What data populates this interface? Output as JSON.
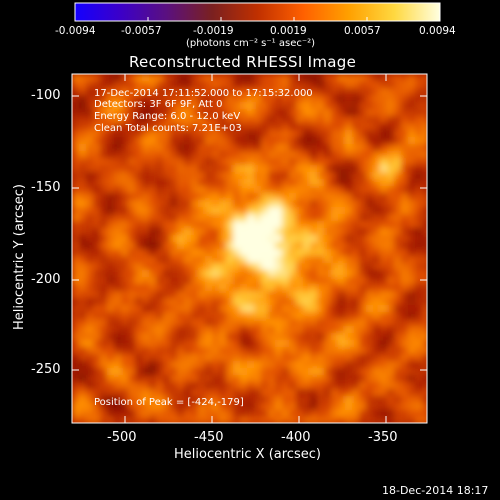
{
  "colorbar": {
    "ticks": [
      "-0.0094",
      "-0.0057",
      "-0.0019",
      "0.0019",
      "0.0057",
      "0.0094"
    ],
    "tick_values": [
      -0.0094,
      -0.0057,
      -0.0019,
      0.0019,
      0.0057,
      0.0094
    ],
    "units": "(photons cm⁻² s⁻¹ asec⁻²)",
    "colors": [
      "#1400ff",
      "#3c00c8",
      "#5a1080",
      "#7a2020",
      "#c03000",
      "#ff6000",
      "#ffa000",
      "#ffd840",
      "#ffffe0"
    ]
  },
  "plot": {
    "title": "Reconstructed RHESSI Image",
    "annotations": [
      "17-Dec-2014 17:11:52.000 to 17:15:32.000",
      "Detectors: 3F 6F 9F, Att 0",
      "Energy Range: 6.0 - 12.0 keV",
      "Clean    Total counts: 7.21E+03"
    ],
    "peak_label": "Position of Peak = [-424,-179]",
    "xlabel": "Heliocentric X (arcsec)",
    "ylabel": "Heliocentric Y (arcsec)",
    "xticks": [
      "-500",
      "-450",
      "-400",
      "-350"
    ],
    "xtick_values": [
      -500,
      -450,
      -400,
      -350
    ],
    "yticks": [
      "-100",
      "-150",
      "-200",
      "-250"
    ],
    "ytick_values": [
      -100,
      -150,
      -200,
      -250
    ],
    "xlim": [
      -527,
      -333
    ],
    "ylim": [
      -283,
      -89
    ],
    "peak": [
      -424,
      -179
    ]
  },
  "footer": {
    "timestamp": "18-Dec-2014 18:17"
  }
}
